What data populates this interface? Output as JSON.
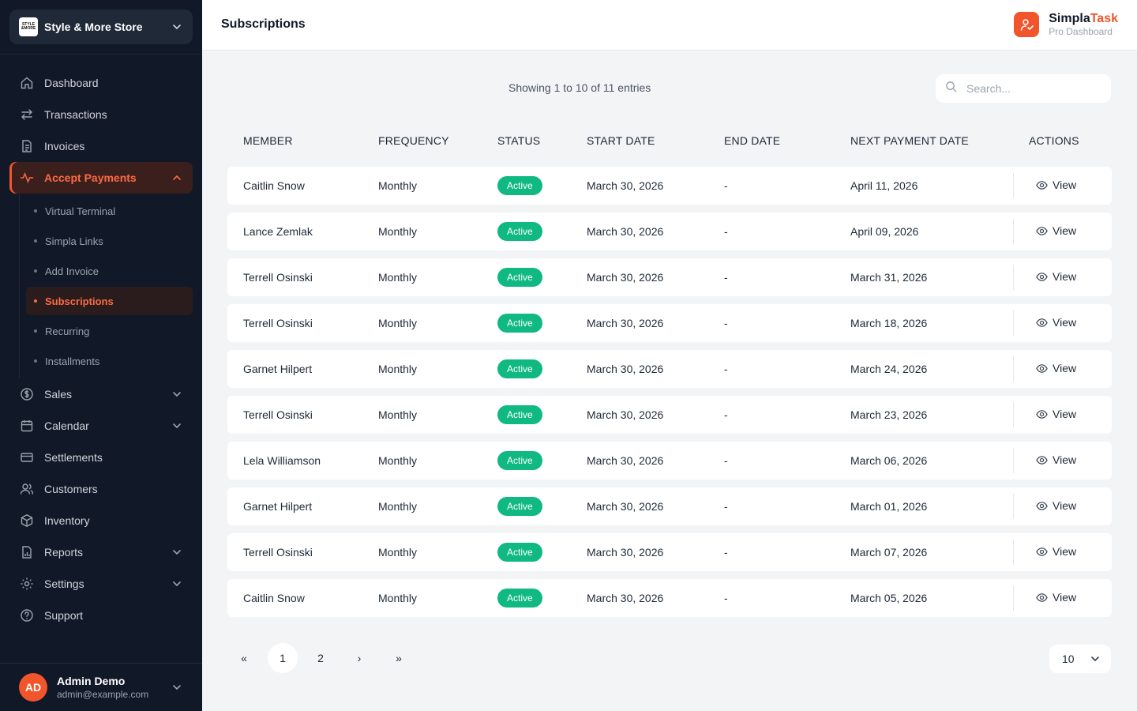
{
  "sidebar": {
    "store_name": "Style & More Store",
    "store_logo_text": [
      "STYLE",
      "&MORE"
    ],
    "nav": [
      {
        "id": "dashboard",
        "label": "Dashboard",
        "icon": "home-icon"
      },
      {
        "id": "transactions",
        "label": "Transactions",
        "icon": "arrows-swap-icon"
      },
      {
        "id": "invoices",
        "label": "Invoices",
        "icon": "document-icon"
      },
      {
        "id": "accept-payments",
        "label": "Accept Payments",
        "icon": "pulse-icon",
        "expanded": true,
        "active": true
      }
    ],
    "sub_nav": [
      {
        "label": "Virtual Terminal"
      },
      {
        "label": "Simpla Links"
      },
      {
        "label": "Add Invoice"
      },
      {
        "label": "Subscriptions",
        "active": true
      },
      {
        "label": "Recurring"
      },
      {
        "label": "Installments"
      }
    ],
    "nav_after": [
      {
        "id": "sales",
        "label": "Sales",
        "icon": "dollar-circle-icon",
        "has_children": true
      },
      {
        "id": "calendar",
        "label": "Calendar",
        "icon": "calendar-icon",
        "has_children": true
      },
      {
        "id": "settlements",
        "label": "Settlements",
        "icon": "card-icon"
      },
      {
        "id": "customers",
        "label": "Customers",
        "icon": "users-icon"
      },
      {
        "id": "inventory",
        "label": "Inventory",
        "icon": "box-icon"
      },
      {
        "id": "reports",
        "label": "Reports",
        "icon": "report-icon",
        "has_children": true
      },
      {
        "id": "settings",
        "label": "Settings",
        "icon": "gear-icon",
        "has_children": true
      },
      {
        "id": "support",
        "label": "Support",
        "icon": "help-circle-icon"
      }
    ],
    "user": {
      "initials": "AD",
      "name": "Admin Demo",
      "email": "admin@example.com"
    }
  },
  "header": {
    "title": "Subscriptions",
    "brand_name_1": "Simpla",
    "brand_name_2": "Task",
    "brand_sub": "Pro Dashboard"
  },
  "colors": {
    "accent": "#f2552c",
    "active_badge": "#10b981",
    "sidebar_bg": "#111827"
  },
  "main": {
    "showing_text": "Showing 1 to 10 of 11 entries",
    "search_placeholder": "Search...",
    "columns": [
      "MEMBER",
      "FREQUENCY",
      "STATUS",
      "START DATE",
      "END DATE",
      "NEXT PAYMENT DATE",
      "ACTIONS"
    ],
    "view_label": "View",
    "rows": [
      {
        "member": "Caitlin Snow",
        "frequency": "Monthly",
        "status": "Active",
        "start": "March 30, 2026",
        "end": "-",
        "next": "April 11, 2026"
      },
      {
        "member": "Lance Zemlak",
        "frequency": "Monthly",
        "status": "Active",
        "start": "March 30, 2026",
        "end": "-",
        "next": "April 09, 2026"
      },
      {
        "member": "Terrell Osinski",
        "frequency": "Monthly",
        "status": "Active",
        "start": "March 30, 2026",
        "end": "-",
        "next": "March 31, 2026"
      },
      {
        "member": "Terrell Osinski",
        "frequency": "Monthly",
        "status": "Active",
        "start": "March 30, 2026",
        "end": "-",
        "next": "March 18, 2026"
      },
      {
        "member": "Garnet Hilpert",
        "frequency": "Monthly",
        "status": "Active",
        "start": "March 30, 2026",
        "end": "-",
        "next": "March 24, 2026"
      },
      {
        "member": "Terrell Osinski",
        "frequency": "Monthly",
        "status": "Active",
        "start": "March 30, 2026",
        "end": "-",
        "next": "March 23, 2026"
      },
      {
        "member": "Lela Williamson",
        "frequency": "Monthly",
        "status": "Active",
        "start": "March 30, 2026",
        "end": "-",
        "next": "March 06, 2026"
      },
      {
        "member": "Garnet Hilpert",
        "frequency": "Monthly",
        "status": "Active",
        "start": "March 30, 2026",
        "end": "-",
        "next": "March 01, 2026"
      },
      {
        "member": "Terrell Osinski",
        "frequency": "Monthly",
        "status": "Active",
        "start": "March 30, 2026",
        "end": "-",
        "next": "March 07, 2026"
      },
      {
        "member": "Caitlin Snow",
        "frequency": "Monthly",
        "status": "Active",
        "start": "March 30, 2026",
        "end": "-",
        "next": "March 05, 2026"
      }
    ],
    "pagination": {
      "first": "«",
      "pages": [
        "1",
        "2"
      ],
      "current": "1",
      "next": "›",
      "last": "»"
    },
    "per_page": "10"
  }
}
